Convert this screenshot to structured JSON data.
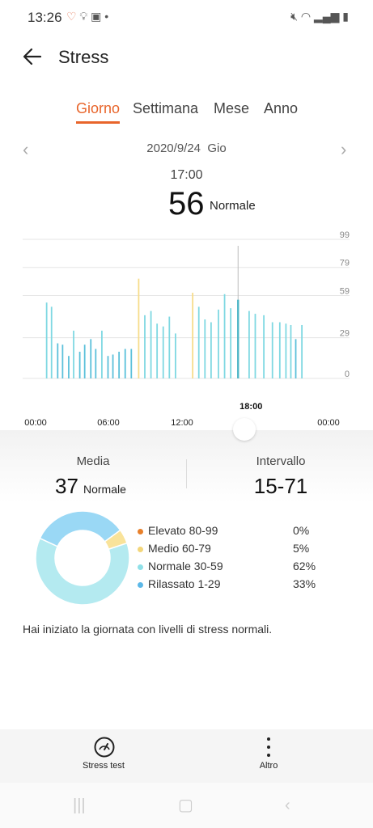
{
  "status_bar": {
    "time": "13:26",
    "icons_left": [
      "heart-rate-icon",
      "lightbulb-icon",
      "image-icon",
      "dot-icon"
    ],
    "icons_right": [
      "mute-icon",
      "wifi-icon",
      "signal-icon",
      "battery-icon"
    ]
  },
  "header": {
    "title": "Stress"
  },
  "tabs": [
    {
      "label": "Giorno",
      "active": true
    },
    {
      "label": "Settimana",
      "active": false
    },
    {
      "label": "Mese",
      "active": false
    },
    {
      "label": "Anno",
      "active": false
    }
  ],
  "date_nav": {
    "date": "2020/9/24",
    "day": "Gio"
  },
  "selection": {
    "time": "17:00",
    "value": "56",
    "level": "Normale"
  },
  "chart_data": {
    "type": "bar",
    "y_ticks": [
      "99",
      "79",
      "59",
      "29",
      "0"
    ],
    "x_ticks": [
      "00:00",
      "06:00",
      "12:00",
      "18:00",
      "00:00"
    ],
    "highlight_label": "18:00",
    "ylim": [
      0,
      99
    ],
    "x_range_hours": [
      0,
      24
    ],
    "grid": true,
    "colors": {
      "normal": "#7fd8e2",
      "medium": "#f7dc8a",
      "relaxed": "#5bc0da",
      "grid": "#e6e6e6"
    },
    "bars": [
      {
        "h": 0.9,
        "v": 54,
        "c": "normal"
      },
      {
        "h": 1.3,
        "v": 51,
        "c": "normal"
      },
      {
        "h": 1.8,
        "v": 25,
        "c": "relaxed"
      },
      {
        "h": 2.2,
        "v": 24,
        "c": "relaxed"
      },
      {
        "h": 2.7,
        "v": 16,
        "c": "relaxed"
      },
      {
        "h": 3.1,
        "v": 34,
        "c": "normal"
      },
      {
        "h": 3.6,
        "v": 19,
        "c": "relaxed"
      },
      {
        "h": 4.0,
        "v": 24,
        "c": "relaxed"
      },
      {
        "h": 4.5,
        "v": 28,
        "c": "relaxed"
      },
      {
        "h": 4.9,
        "v": 21,
        "c": "relaxed"
      },
      {
        "h": 5.4,
        "v": 34,
        "c": "normal"
      },
      {
        "h": 5.9,
        "v": 16,
        "c": "relaxed"
      },
      {
        "h": 6.3,
        "v": 17,
        "c": "relaxed"
      },
      {
        "h": 6.8,
        "v": 19,
        "c": "relaxed"
      },
      {
        "h": 7.3,
        "v": 21,
        "c": "relaxed"
      },
      {
        "h": 7.8,
        "v": 21,
        "c": "relaxed"
      },
      {
        "h": 8.4,
        "v": 71,
        "c": "medium"
      },
      {
        "h": 8.9,
        "v": 45,
        "c": "normal"
      },
      {
        "h": 9.4,
        "v": 48,
        "c": "normal"
      },
      {
        "h": 9.9,
        "v": 39,
        "c": "normal"
      },
      {
        "h": 10.4,
        "v": 37,
        "c": "normal"
      },
      {
        "h": 10.9,
        "v": 44,
        "c": "normal"
      },
      {
        "h": 11.4,
        "v": 32,
        "c": "normal"
      },
      {
        "h": 12.8,
        "v": 61,
        "c": "medium"
      },
      {
        "h": 13.3,
        "v": 51,
        "c": "normal"
      },
      {
        "h": 13.8,
        "v": 42,
        "c": "normal"
      },
      {
        "h": 14.3,
        "v": 40,
        "c": "normal"
      },
      {
        "h": 14.9,
        "v": 49,
        "c": "normal"
      },
      {
        "h": 15.4,
        "v": 60,
        "c": "normal"
      },
      {
        "h": 15.9,
        "v": 50,
        "c": "normal"
      },
      {
        "h": 16.5,
        "v": 56,
        "c": "normal"
      },
      {
        "h": 17.4,
        "v": 48,
        "c": "normal"
      },
      {
        "h": 17.9,
        "v": 46,
        "c": "normal"
      },
      {
        "h": 18.6,
        "v": 45,
        "c": "normal"
      },
      {
        "h": 19.3,
        "v": 40,
        "c": "normal"
      },
      {
        "h": 19.9,
        "v": 40,
        "c": "normal"
      },
      {
        "h": 20.4,
        "v": 39,
        "c": "normal"
      },
      {
        "h": 20.8,
        "v": 38,
        "c": "normal"
      },
      {
        "h": 21.2,
        "v": 28,
        "c": "relaxed"
      },
      {
        "h": 21.7,
        "v": 38,
        "c": "normal"
      }
    ],
    "selected_hour": 16.5
  },
  "summary": {
    "media_label": "Media",
    "media_value": "37",
    "media_level": "Normale",
    "range_label": "Intervallo",
    "range_value": "15-71"
  },
  "distribution": [
    {
      "name": "Elevato 80-99",
      "pct": "0%",
      "value": 0,
      "color": "#e8802b"
    },
    {
      "name": "Medio 60-79",
      "pct": "5%",
      "value": 5,
      "color": "#f9e39a"
    },
    {
      "name": "Normale 30-59",
      "pct": "62%",
      "value": 62,
      "color": "#b4eaf0"
    },
    {
      "name": "Rilassato 1-29",
      "pct": "33%",
      "value": 33,
      "color": "#9ad8f5"
    }
  ],
  "message": "Hai iniziato la giornata con livelli di stress normali.",
  "actions": [
    {
      "label": "Stress test",
      "icon": "gauge-icon"
    },
    {
      "label": "Altro",
      "icon": "more-vertical-icon"
    }
  ],
  "navbar": [
    "recent-apps-icon",
    "home-icon",
    "back-nav-icon"
  ]
}
